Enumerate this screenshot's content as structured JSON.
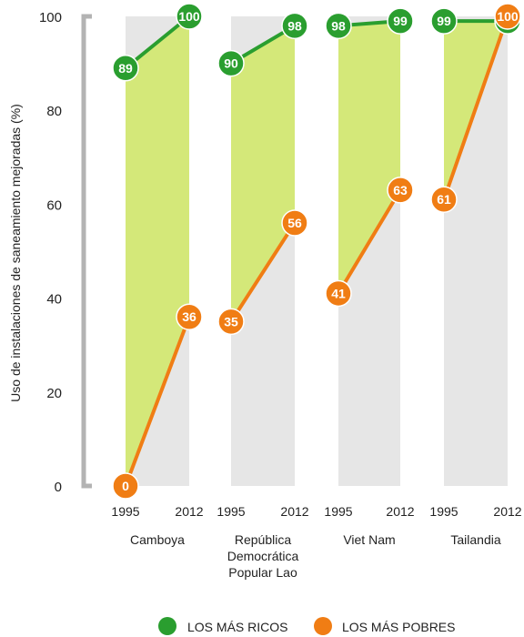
{
  "chart_data": {
    "type": "line",
    "ylabel": "Uso de instalaciones de saneamiento mejoradas (%)",
    "ylim": [
      0,
      100
    ],
    "y_ticks": [
      "0",
      "20",
      "40",
      "60",
      "80",
      "100"
    ],
    "x_ticks": [
      "1995",
      "2012"
    ],
    "colors": {
      "richest": "#2a9e2f",
      "poorest": "#f07d14",
      "gap_fill": "#d4e879",
      "panel_bg": "#e6e6e6",
      "axis": "#b3b3b3"
    },
    "groups": [
      {
        "label_lines": [
          "Camboya"
        ],
        "richest": [
          89,
          100
        ],
        "poorest": [
          0,
          36
        ]
      },
      {
        "label_lines": [
          "República",
          "Democrática",
          "Popular Lao"
        ],
        "richest": [
          90,
          98
        ],
        "poorest": [
          35,
          56
        ]
      },
      {
        "label_lines": [
          "Viet Nam"
        ],
        "richest": [
          98,
          99
        ],
        "poorest": [
          41,
          63
        ]
      },
      {
        "label_lines": [
          "Tailandia"
        ],
        "richest": [
          99,
          99
        ],
        "poorest": [
          61,
          100
        ]
      }
    ],
    "legend": [
      {
        "key": "richest",
        "label": "LOS MÁS RICOS"
      },
      {
        "key": "poorest",
        "label": "LOS MÁS POBRES"
      }
    ]
  }
}
